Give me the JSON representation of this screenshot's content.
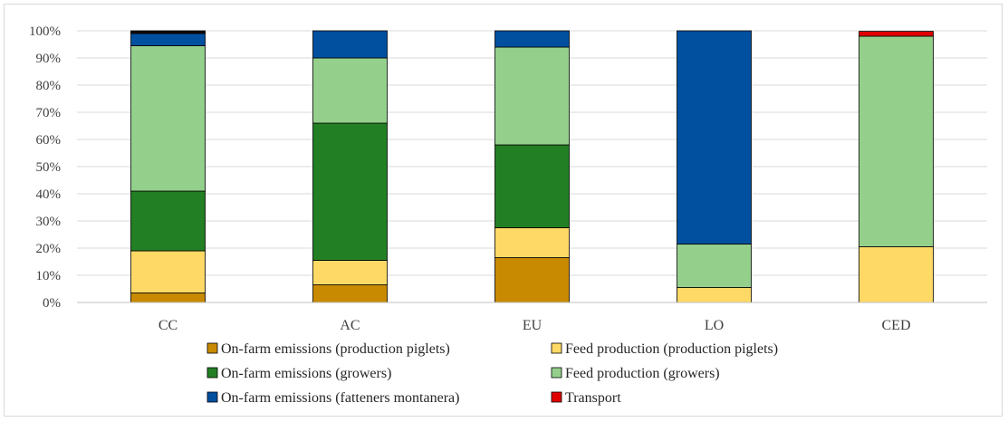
{
  "chart_data": {
    "type": "bar",
    "stacked": true,
    "title": "",
    "xlabel": "",
    "ylabel": "",
    "ylim": [
      0,
      100
    ],
    "yticks": [
      "0%",
      "10%",
      "20%",
      "30%",
      "40%",
      "50%",
      "60%",
      "70%",
      "80%",
      "90%",
      "100%"
    ],
    "categories": [
      "CC",
      "AC",
      "EU",
      "LO",
      "CED"
    ],
    "series": [
      {
        "name": "On-farm emissions (production piglets)",
        "color": "#c88a00",
        "values": [
          3.5,
          6.5,
          16.5,
          0,
          0
        ]
      },
      {
        "name": "Feed production (production piglets)",
        "color": "#ffd966",
        "values": [
          15.5,
          9.0,
          11.0,
          5.5,
          20.5
        ]
      },
      {
        "name": "On-farm emissions (growers)",
        "color": "#237f24",
        "values": [
          22.0,
          50.5,
          30.5,
          0,
          0
        ]
      },
      {
        "name": "Feed production (growers)",
        "color": "#94d08c",
        "values": [
          53.5,
          24.0,
          36.0,
          16.0,
          77.5
        ]
      },
      {
        "name": "On-farm emissions (fatteners montanera)",
        "color": "#00509f",
        "values": [
          4.5,
          10.0,
          6.0,
          78.5,
          0
        ]
      },
      {
        "name": "Transport",
        "color": "#e00000",
        "values": [
          0.3,
          0,
          0,
          0,
          1.8
        ]
      }
    ],
    "extra_cap": {
      "category_index": 0,
      "color": "#111111",
      "value": 0.7
    },
    "legend_position": "bottom"
  }
}
